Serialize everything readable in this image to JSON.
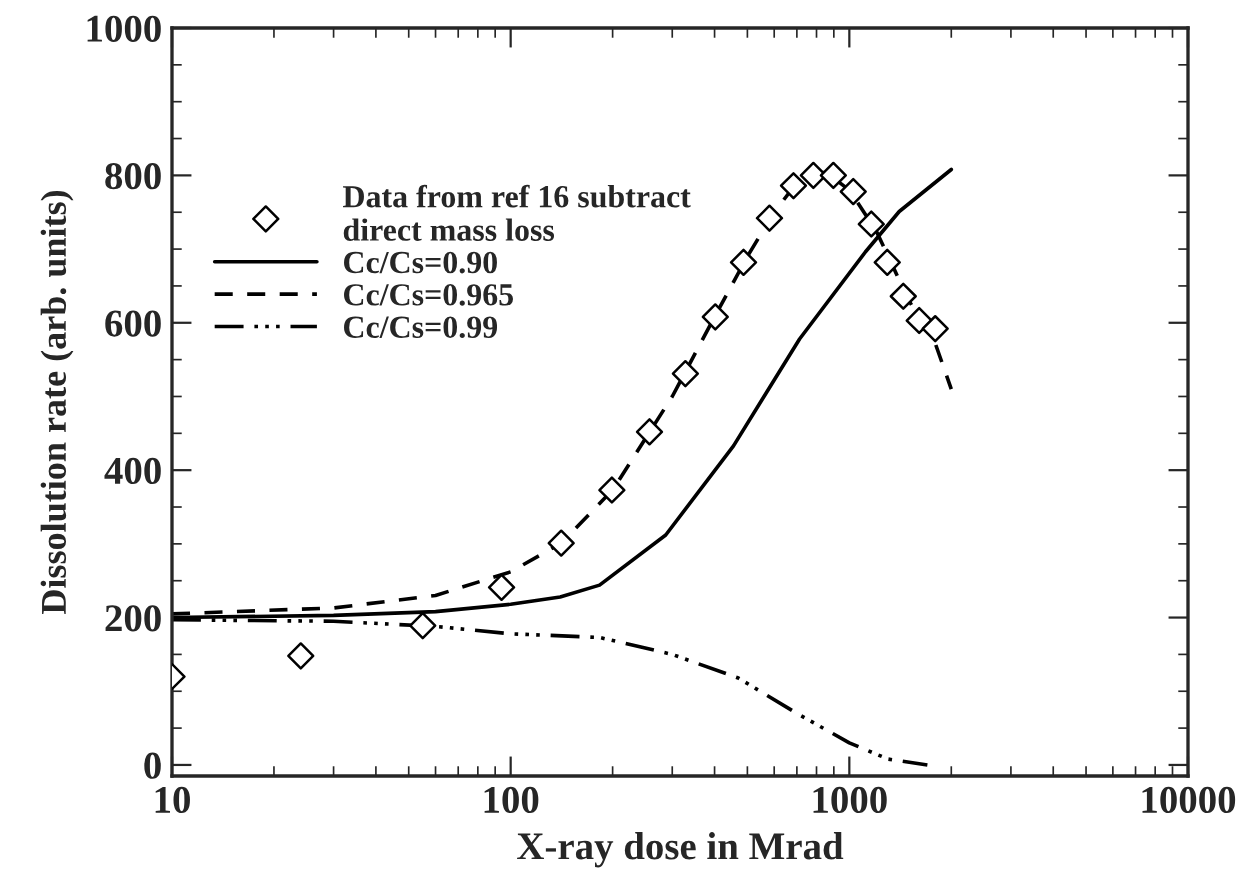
{
  "chart_data": {
    "type": "line",
    "xlabel": "X-ray dose in Mrad",
    "ylabel": "Dissolution rate (arb. units)",
    "log": "x",
    "xlim": [
      10,
      10000
    ],
    "xticks": [
      10,
      100,
      1000,
      10000
    ],
    "ylim": [
      -15,
      1000
    ],
    "yticks": [
      0,
      200,
      400,
      600,
      800,
      1000
    ],
    "grid": false,
    "legend": "top left",
    "series": [
      {
        "name": "Data from ref 16 subtract\ndirect mass loss",
        "type": "scatter",
        "marker": "diamond",
        "color": "#000000",
        "x": [
          10,
          24,
          55,
          94,
          141,
          199,
          257,
          328,
          402,
          487,
          581,
          684,
          783,
          897,
          1027,
          1161,
          1294,
          1443,
          1608,
          1793
        ],
        "values": [
          120,
          148,
          189,
          241,
          301,
          373,
          452,
          531,
          608,
          682,
          742,
          786,
          800,
          800,
          778,
          734,
          682,
          636,
          603,
          592
        ]
      },
      {
        "name": "Cc/Cs=0.90",
        "line_style": "solid",
        "color": "#000000",
        "x": [
          10,
          30,
          60,
          100,
          140,
          183,
          287,
          455,
          713,
          1115,
          1404,
          2000
        ],
        "values": [
          200,
          203,
          208,
          218,
          228,
          244,
          312,
          433,
          578,
          696,
          751,
          808
        ]
      },
      {
        "name": "Cc/Cs=0.965",
        "line_style": "dashed",
        "color": "#000000",
        "x": [
          10,
          30,
          60,
          100,
          141,
          200,
          300,
          400,
          500,
          600,
          700,
          850,
          1000,
          1200,
          1500,
          1800,
          2000
        ],
        "values": [
          205,
          213,
          230,
          262,
          301,
          373,
          500,
          608,
          690,
          750,
          790,
          805,
          780,
          725,
          630,
          570,
          510
        ]
      },
      {
        "name": "Cc/Cs=0.99",
        "line_style": "dashdotdot",
        "color": "#000000",
        "x": [
          10,
          30,
          60,
          100,
          183,
          300,
          470,
          700,
          1000,
          1300,
          1700
        ],
        "values": [
          197,
          195,
          188,
          178,
          173,
          150,
          118,
          70,
          30,
          8,
          0
        ]
      }
    ]
  }
}
